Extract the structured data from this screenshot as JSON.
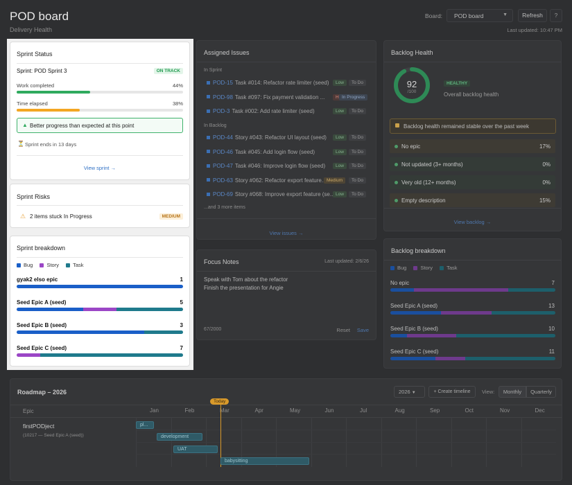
{
  "header": {
    "title": "POD board",
    "subtitle": "Delivery Health",
    "board_label": "Board:",
    "board_value": "POD board",
    "refresh_label": "Refresh",
    "help_label": "?",
    "last_updated": "Last updated: 10:47 PM"
  },
  "sprint_status": {
    "title": "Sprint Status",
    "sprint_name": "Sprint: POD Sprint 3",
    "badge": "ON TRACK",
    "work_label": "Work completed",
    "work_pct_text": "44%",
    "work_pct": 44,
    "time_label": "Time elapsed",
    "time_pct_text": "38%",
    "time_pct": 38,
    "alert": "Better progress than expected at this point",
    "ends": "Sprint ends in 13 days",
    "view_link": "View sprint →",
    "colors": {
      "work": "#2faa5e",
      "time": "#f3a623",
      "badge": "#1f9a4e"
    }
  },
  "sprint_risks": {
    "title": "Sprint Risks",
    "item": "2 items stuck In Progress",
    "badge": "MEDIUM"
  },
  "sprint_breakdown": {
    "title": "Sprint breakdown",
    "legend": [
      {
        "label": "Bug",
        "color": "#1a5fc8"
      },
      {
        "label": "Story",
        "color": "#9b46c6"
      },
      {
        "label": "Task",
        "color": "#1f7a8c"
      }
    ],
    "rows": [
      {
        "name": "gyak2 elso epic",
        "count": "1",
        "bug": 1,
        "story": 0,
        "task": 0
      },
      {
        "name": "Seed Epic A (seed)",
        "count": "5",
        "bug": 2,
        "story": 1,
        "task": 2
      },
      {
        "name": "Seed Epic B (seed)",
        "count": "3",
        "bug": 2.3,
        "story": 0,
        "task": 0.7
      },
      {
        "name": "Seed Epic C (seed)",
        "count": "7",
        "bug": 0,
        "story": 1,
        "task": 6
      }
    ]
  },
  "assigned_issues": {
    "title": "Assigned Issues",
    "in_sprint_label": "In Sprint",
    "in_sprint": [
      {
        "key": "POD-15",
        "text": "Task #014: Refactor rate limiter (seed)",
        "priority": "Low",
        "status": "To Do"
      },
      {
        "key": "POD-98",
        "text": "Task #097: Fix payment validation ...",
        "priority": "High",
        "status": "In Progress"
      },
      {
        "key": "POD-3",
        "text": "Task #002: Add rate limiter (seed)",
        "priority": "Low",
        "status": "To Do"
      }
    ],
    "in_backlog_label": "In Backlog",
    "in_backlog": [
      {
        "key": "POD-44",
        "text": "Story #043: Refactor UI layout (seed)",
        "priority": "Low",
        "status": "To Do"
      },
      {
        "key": "POD-46",
        "text": "Task #045: Add login flow (seed)",
        "priority": "Low",
        "status": "To Do"
      },
      {
        "key": "POD-47",
        "text": "Task #046: Improve login flow (seed)",
        "priority": "Low",
        "status": "To Do"
      },
      {
        "key": "POD-63",
        "text": "Story #062: Refactor export feature...",
        "priority": "Medium",
        "status": "To Do"
      },
      {
        "key": "POD-69",
        "text": "Story #068: Improve export feature (se...",
        "priority": "Low",
        "status": "To Do"
      }
    ],
    "more": "...and 3 more items",
    "view_link": "View issues →"
  },
  "focus_notes": {
    "title": "Focus Notes",
    "updated": "Last updated: 2/6/26",
    "line1": "Speak with Tom about the refactor",
    "line2": "Finish the presentation for Angie",
    "count": "67/2000",
    "reset": "Reset",
    "save": "Save"
  },
  "backlog_health": {
    "title": "Backlog Health",
    "score": "92",
    "score_max": "/100",
    "score_value": 92,
    "badge": "HEALTHY",
    "caption": "Overall backlog health",
    "notice": "Backlog health remained stable over the past week",
    "rows": [
      {
        "label": "No epic",
        "value": "17%",
        "tone": "warn"
      },
      {
        "label": "Not updated (3+ months)",
        "value": "0%",
        "tone": "ok"
      },
      {
        "label": "Very old (12+ months)",
        "value": "0%",
        "tone": "ok"
      },
      {
        "label": "Empty description",
        "value": "15%",
        "tone": "warn"
      }
    ],
    "view_link": "View backlog →"
  },
  "backlog_breakdown": {
    "title": "Backlog breakdown",
    "legend": [
      {
        "label": "Bug",
        "color": "#1a4f9e"
      },
      {
        "label": "Story",
        "color": "#6e3a8c"
      },
      {
        "label": "Task",
        "color": "#1d5f6b"
      }
    ],
    "rows": [
      {
        "name": "No epic",
        "count": "7",
        "bug": 1,
        "story": 4,
        "task": 2
      },
      {
        "name": "Seed Epic A (seed)",
        "count": "13",
        "bug": 4,
        "story": 4,
        "task": 5
      },
      {
        "name": "Seed Epic B (seed)",
        "count": "10",
        "bug": 1,
        "story": 3,
        "task": 6
      },
      {
        "name": "Seed Epic C (seed)",
        "count": "11",
        "bug": 3,
        "story": 2,
        "task": 6
      }
    ]
  },
  "roadmap": {
    "title": "Roadmap – 2026",
    "year": "2026",
    "create": "+ Create timeline",
    "view_label": "View:",
    "view_monthly": "Monthly",
    "view_quarterly": "Quarterly",
    "epic_header": "Epic",
    "months": [
      "Jan",
      "Feb",
      "Mar",
      "Apr",
      "May",
      "Jun",
      "Jul",
      "Aug",
      "Sep",
      "Oct",
      "Nov",
      "Dec"
    ],
    "today": "Today",
    "epic_name": "firstPODject",
    "epic_sub": "(10217 — Seed Epic A (seed))",
    "bars": [
      "pl...",
      "development",
      "UAT",
      "babysitting"
    ]
  }
}
